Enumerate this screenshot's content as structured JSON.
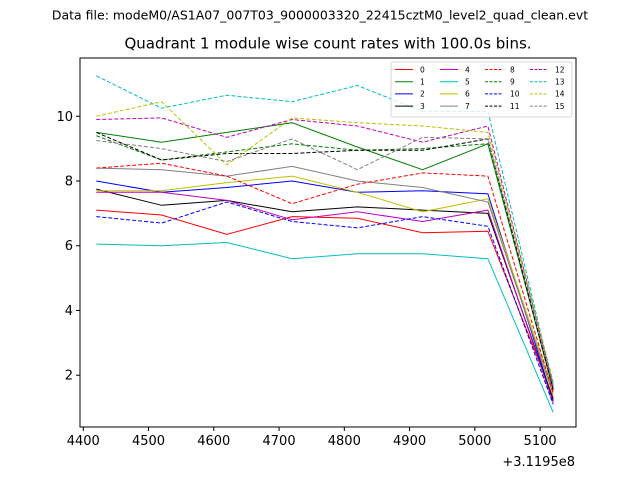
{
  "figure": {
    "suptitle": "Data file: modeM0/AS1A07_007T03_9000003320_22415cztM0_level2_quad_clean.evt"
  },
  "chart_data": {
    "type": "line",
    "title": "Quadrant 1 module wise count rates with 100.0s bins.",
    "xlabel": "",
    "ylabel": "",
    "x_offset_label": "+3.1195e8",
    "x": [
      4420,
      4520,
      4620,
      4720,
      4820,
      4920,
      5020,
      5120
    ],
    "xlim": [
      4395,
      5155
    ],
    "ylim": [
      0.4,
      11.8
    ],
    "xticks": [
      4400,
      4500,
      4600,
      4700,
      4800,
      4900,
      5000,
      5100
    ],
    "xtick_labels": [
      "4400",
      "4500",
      "4600",
      "4700",
      "4800",
      "4900",
      "5000",
      "5100"
    ],
    "yticks": [
      2,
      4,
      6,
      8,
      10
    ],
    "ytick_labels": [
      "2",
      "4",
      "6",
      "8",
      "10"
    ],
    "grid": false,
    "legend_position": "top-right",
    "legend_columns": 4,
    "series": [
      {
        "name": "0",
        "color": "#ff0000",
        "dash": "solid",
        "values": [
          7.1,
          6.95,
          6.35,
          6.9,
          6.85,
          6.4,
          6.45,
          1.3
        ]
      },
      {
        "name": "1",
        "color": "#008000",
        "dash": "solid",
        "values": [
          9.5,
          9.2,
          9.5,
          9.8,
          9.05,
          8.35,
          9.15,
          1.55
        ]
      },
      {
        "name": "2",
        "color": "#0000ff",
        "dash": "solid",
        "values": [
          8.0,
          7.65,
          7.8,
          8.0,
          7.65,
          7.7,
          7.6,
          1.2
        ]
      },
      {
        "name": "3",
        "color": "#000000",
        "dash": "solid",
        "values": [
          7.75,
          7.25,
          7.4,
          7.05,
          7.2,
          7.1,
          7.0,
          1.25
        ]
      },
      {
        "name": "4",
        "color": "#bf00bf",
        "dash": "solid",
        "values": [
          7.65,
          7.65,
          7.4,
          6.8,
          7.05,
          6.75,
          7.1,
          1.15
        ]
      },
      {
        "name": "5",
        "color": "#00bfbf",
        "dash": "solid",
        "values": [
          6.05,
          6.0,
          6.1,
          5.6,
          5.75,
          5.75,
          5.6,
          0.85
        ]
      },
      {
        "name": "6",
        "color": "#bfbf00",
        "dash": "solid",
        "values": [
          7.7,
          7.7,
          7.95,
          8.15,
          7.65,
          7.05,
          7.45,
          1.5
        ]
      },
      {
        "name": "7",
        "color": "#808080",
        "dash": "solid",
        "values": [
          8.4,
          8.35,
          8.15,
          8.45,
          8.0,
          7.8,
          7.35,
          1.4
        ]
      },
      {
        "name": "8",
        "color": "#ff0000",
        "dash": "dashed",
        "values": [
          8.4,
          8.55,
          8.15,
          7.3,
          7.9,
          8.25,
          8.15,
          1.45
        ]
      },
      {
        "name": "9",
        "color": "#008000",
        "dash": "dashed",
        "values": [
          9.4,
          8.65,
          8.9,
          9.15,
          8.95,
          9.0,
          9.15,
          1.6
        ]
      },
      {
        "name": "10",
        "color": "#0000ff",
        "dash": "dashed",
        "values": [
          6.9,
          6.7,
          7.35,
          6.75,
          6.55,
          6.9,
          6.6,
          1.1
        ]
      },
      {
        "name": "11",
        "color": "#000000",
        "dash": "dashed",
        "values": [
          9.5,
          8.65,
          8.85,
          8.85,
          8.95,
          8.95,
          9.3,
          1.55
        ]
      },
      {
        "name": "12",
        "color": "#bf00bf",
        "dash": "dashed",
        "values": [
          9.9,
          9.95,
          9.35,
          9.9,
          9.7,
          9.2,
          9.7,
          1.65
        ]
      },
      {
        "name": "13",
        "color": "#00bfbf",
        "dash": "dashed",
        "values": [
          11.25,
          10.25,
          10.65,
          10.45,
          10.95,
          10.15,
          10.15,
          1.7
        ]
      },
      {
        "name": "14",
        "color": "#bfbf00",
        "dash": "dashed",
        "values": [
          10.0,
          10.45,
          8.5,
          9.95,
          9.8,
          9.7,
          9.5,
          1.8
        ]
      },
      {
        "name": "15",
        "color": "#808080",
        "dash": "dashed",
        "values": [
          9.25,
          9.0,
          8.6,
          9.3,
          8.35,
          9.35,
          9.3,
          1.75
        ]
      }
    ]
  }
}
